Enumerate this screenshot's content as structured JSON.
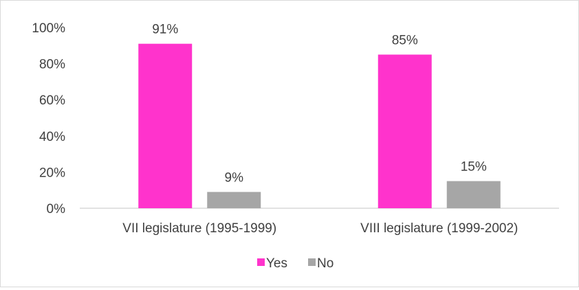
{
  "chart_data": {
    "type": "bar",
    "categories": [
      "VII legislature (1995-1999)",
      "VIII legislature (1999-2002)"
    ],
    "series": [
      {
        "name": "Yes",
        "values": [
          91,
          85
        ],
        "labels": [
          "91%",
          "85%"
        ],
        "color": "#ff33cc"
      },
      {
        "name": "No",
        "values": [
          9,
          15
        ],
        "labels": [
          "9%",
          "15%"
        ],
        "color": "#a6a6a6"
      }
    ],
    "yticks": [
      {
        "value": 0,
        "label": "0%"
      },
      {
        "value": 20,
        "label": "20%"
      },
      {
        "value": 40,
        "label": "40%"
      },
      {
        "value": 60,
        "label": "60%"
      },
      {
        "value": 80,
        "label": "80%"
      },
      {
        "value": 100,
        "label": "100%"
      }
    ],
    "ylim": [
      0,
      100
    ],
    "grid": false,
    "legend": "bottom-center",
    "title": "",
    "xlabel": "",
    "ylabel": ""
  }
}
